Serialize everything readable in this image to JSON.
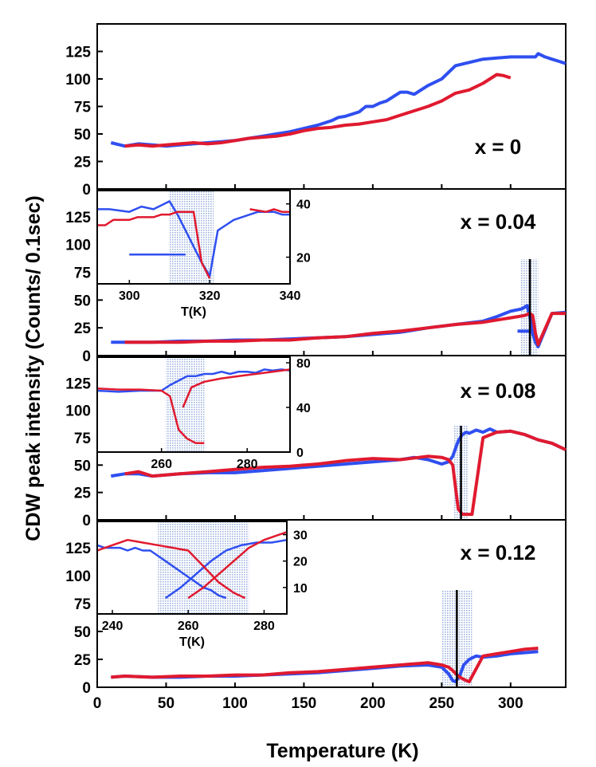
{
  "figure": {
    "xlabel": "Temperature (K)",
    "ylabel": "CDW peak intensity (Counts/ 0.1sec)",
    "xticks": [
      "0",
      "50",
      "100",
      "150",
      "200",
      "250",
      "300"
    ],
    "yticks": [
      "0",
      "25",
      "50",
      "75",
      "100",
      "125"
    ],
    "colors": {
      "blue": "#2f4ff0",
      "red": "#e01a2f",
      "shade": "#9fb4e0"
    }
  },
  "chart_data": [
    {
      "type": "line",
      "title": "x = 0",
      "xlim": [
        0,
        340
      ],
      "ylim": [
        0,
        150
      ],
      "series": [
        {
          "name": "blue",
          "x": [
            10,
            20,
            30,
            40,
            50,
            60,
            70,
            80,
            90,
            100,
            110,
            120,
            130,
            140,
            150,
            160,
            170,
            175,
            180,
            190,
            195,
            200,
            205,
            210,
            220,
            225,
            230,
            240,
            250,
            260,
            270,
            280,
            290,
            300,
            310,
            318,
            320,
            325,
            330,
            335,
            340
          ],
          "y": [
            42,
            39,
            41,
            40,
            39,
            40,
            41,
            42,
            43,
            44,
            46,
            48,
            50,
            52,
            55,
            58,
            62,
            65,
            66,
            70,
            75,
            75,
            78,
            80,
            88,
            88,
            86,
            94,
            100,
            112,
            115,
            118,
            119,
            120,
            120,
            120,
            123,
            120,
            118,
            116,
            114
          ]
        },
        {
          "name": "red",
          "x": [
            20,
            30,
            40,
            50,
            60,
            70,
            80,
            90,
            100,
            110,
            120,
            130,
            140,
            150,
            160,
            170,
            180,
            190,
            200,
            210,
            220,
            230,
            240,
            250,
            260,
            270,
            280,
            290,
            295,
            300
          ],
          "y": [
            39,
            40,
            39,
            40,
            41,
            42,
            41,
            42,
            44,
            46,
            47,
            48,
            50,
            53,
            55,
            56,
            58,
            59,
            61,
            63,
            67,
            71,
            75,
            80,
            87,
            90,
            96,
            104,
            103,
            101
          ]
        }
      ]
    },
    {
      "type": "line",
      "title": "x = 0.04",
      "xlim": [
        0,
        340
      ],
      "ylim": [
        0,
        150
      ],
      "series": [
        {
          "name": "blue",
          "x": [
            10,
            20,
            40,
            60,
            80,
            100,
            120,
            140,
            160,
            180,
            200,
            220,
            240,
            260,
            280,
            290,
            300,
            308,
            312,
            314,
            316,
            318,
            320,
            330,
            340
          ],
          "y": [
            12,
            12,
            12,
            13,
            13,
            14,
            14,
            15,
            16,
            17,
            19,
            21,
            25,
            28,
            31,
            35,
            40,
            42,
            45,
            35,
            20,
            12,
            8,
            38,
            39
          ]
        },
        {
          "name": "blue-low",
          "x": [
            305,
            314
          ],
          "y": [
            22,
            22
          ]
        },
        {
          "name": "red",
          "x": [
            20,
            40,
            60,
            80,
            100,
            120,
            140,
            160,
            180,
            200,
            220,
            240,
            260,
            280,
            300,
            310,
            314,
            316,
            318,
            320,
            330,
            340
          ],
          "y": [
            12,
            12,
            12,
            13,
            13,
            14,
            14,
            16,
            17,
            20,
            22,
            25,
            28,
            30,
            34,
            36,
            38,
            36,
            20,
            10,
            38,
            38
          ]
        }
      ],
      "annotations": [
        "vertical line at T = 314 K",
        "shaded band 307–320 K"
      ]
    },
    {
      "type": "line",
      "title": "x = 0.08",
      "xlim": [
        0,
        340
      ],
      "ylim": [
        0,
        150
      ],
      "series": [
        {
          "name": "blue",
          "x": [
            10,
            20,
            30,
            40,
            60,
            80,
            100,
            120,
            140,
            160,
            180,
            200,
            220,
            230,
            240,
            250,
            255,
            258,
            260,
            262,
            265,
            268,
            270,
            275,
            280,
            285,
            290,
            300,
            310,
            320,
            330,
            340
          ],
          "y": [
            40,
            42,
            42,
            40,
            42,
            43,
            43,
            45,
            47,
            49,
            51,
            53,
            55,
            57,
            55,
            51,
            53,
            58,
            65,
            72,
            78,
            80,
            79,
            82,
            80,
            83,
            80,
            81,
            78,
            73,
            70,
            64
          ]
        },
        {
          "name": "red",
          "x": [
            20,
            30,
            40,
            60,
            80,
            100,
            120,
            140,
            160,
            180,
            200,
            220,
            240,
            250,
            255,
            258,
            260,
            262,
            265,
            268,
            272,
            280,
            290,
            300,
            310,
            320,
            330,
            340
          ],
          "y": [
            42,
            44,
            40,
            42,
            44,
            46,
            48,
            49,
            51,
            54,
            56,
            55,
            58,
            57,
            55,
            50,
            30,
            10,
            5,
            5,
            5,
            75,
            80,
            81,
            78,
            73,
            70,
            64
          ]
        }
      ],
      "annotations": [
        "vertical line at T = 264 K",
        "shaded band 259–269 K"
      ]
    },
    {
      "type": "line",
      "title": "x = 0.12",
      "xlim": [
        0,
        340
      ],
      "ylim": [
        0,
        150
      ],
      "series": [
        {
          "name": "blue",
          "x": [
            10,
            20,
            40,
            60,
            80,
            100,
            120,
            140,
            160,
            180,
            200,
            220,
            240,
            250,
            255,
            258,
            260,
            263,
            266,
            270,
            275,
            280,
            290,
            300,
            310,
            320
          ],
          "y": [
            9,
            10,
            9,
            9,
            10,
            10,
            11,
            12,
            13,
            15,
            17,
            19,
            20,
            18,
            12,
            6,
            5,
            10,
            20,
            25,
            28,
            27,
            28,
            30,
            31,
            32
          ]
        },
        {
          "name": "red",
          "x": [
            10,
            20,
            40,
            60,
            80,
            100,
            120,
            140,
            160,
            180,
            200,
            220,
            230,
            240,
            250,
            255,
            258,
            262,
            266,
            270,
            280,
            290,
            300,
            310,
            320
          ],
          "y": [
            9,
            10,
            9,
            10,
            10,
            11,
            11,
            13,
            14,
            16,
            18,
            20,
            21,
            22,
            20,
            18,
            15,
            10,
            7,
            5,
            28,
            30,
            32,
            34,
            35
          ]
        }
      ],
      "annotations": [
        "vertical line at T = 261 K",
        "shaded band 250–272 K"
      ]
    }
  ],
  "insets": [
    {
      "panel": "x = 0.04",
      "xlabel": "T(K)",
      "xticks": [
        "300",
        "320",
        "340"
      ],
      "right_yticks": [
        "20",
        "40"
      ],
      "xlim": [
        292,
        340
      ],
      "ylim": [
        10,
        45
      ],
      "series": [
        {
          "name": "blue",
          "x": [
            292,
            295,
            300,
            303,
            306,
            310,
            312,
            314,
            316,
            318,
            320,
            322,
            324,
            326,
            328,
            330,
            332,
            334,
            336,
            338,
            340
          ],
          "y": [
            38,
            38,
            37,
            39,
            38,
            41,
            36,
            30,
            24,
            18,
            13,
            30,
            32,
            34,
            35,
            36,
            37,
            37,
            37,
            36,
            36
          ]
        },
        {
          "name": "blue-horizontal",
          "x": [
            300,
            314
          ],
          "y": [
            21,
            21
          ]
        },
        {
          "name": "red",
          "x": [
            292,
            294,
            296,
            298,
            300,
            302,
            304,
            306,
            308,
            310,
            312,
            314,
            316,
            318,
            320
          ],
          "y": [
            32,
            32,
            34,
            34,
            34,
            35,
            35,
            35,
            36,
            36,
            37,
            37,
            37,
            18,
            12
          ]
        },
        {
          "name": "red-right",
          "x": [
            330,
            334,
            336,
            338,
            340
          ],
          "y": [
            38,
            37,
            38,
            37,
            37
          ]
        }
      ],
      "shade": [
        310,
        321
      ]
    },
    {
      "panel": "x = 0.08",
      "xlabel": "",
      "xticks": [
        "260",
        "280"
      ],
      "right_yticks": [
        "0",
        "40",
        "80"
      ],
      "xlim": [
        245,
        290
      ],
      "ylim": [
        0,
        85
      ],
      "series": [
        {
          "name": "blue",
          "x": [
            245,
            250,
            255,
            260,
            262,
            264,
            266,
            268,
            270,
            272,
            274,
            276,
            278,
            280,
            282,
            284,
            286,
            288,
            290
          ],
          "y": [
            55,
            54,
            55,
            55,
            60,
            64,
            68,
            68,
            70,
            70,
            72,
            70,
            72,
            72,
            71,
            74,
            73,
            74,
            73
          ]
        },
        {
          "name": "red",
          "x": [
            245,
            250,
            255,
            260,
            262,
            264,
            266,
            268,
            270
          ],
          "y": [
            57,
            56,
            56,
            55,
            50,
            20,
            12,
            8,
            8
          ]
        },
        {
          "name": "red-upper",
          "x": [
            265,
            267,
            270,
            274,
            278,
            282,
            286,
            290
          ],
          "y": [
            40,
            58,
            63,
            66,
            68,
            70,
            72,
            74
          ]
        }
      ],
      "shade": [
        261,
        270
      ]
    },
    {
      "panel": "x = 0.12",
      "xlabel": "T(K)",
      "xticks": [
        "240",
        "260",
        "280"
      ],
      "right_yticks": [
        "10",
        "20",
        "30"
      ],
      "xlim": [
        236,
        286
      ],
      "ylim": [
        0,
        35
      ],
      "series": [
        {
          "name": "blue",
          "x": [
            236,
            238,
            240,
            242,
            244,
            246,
            248,
            250,
            252,
            254,
            256,
            258,
            260,
            262,
            264,
            266,
            268,
            270
          ],
          "y": [
            26,
            25,
            25,
            25,
            24,
            25,
            24,
            24,
            22,
            20,
            18,
            16,
            14,
            12,
            10,
            9,
            7,
            6
          ]
        },
        {
          "name": "blue-rise",
          "x": [
            254,
            258,
            262,
            266,
            270,
            274,
            278,
            282,
            286
          ],
          "y": [
            6,
            10,
            15,
            20,
            24,
            26,
            27,
            27,
            28
          ]
        },
        {
          "name": "red",
          "x": [
            236,
            240,
            244,
            248,
            252,
            256,
            260,
            264,
            268,
            272,
            275
          ],
          "y": [
            24,
            26,
            28,
            27,
            26,
            25,
            24,
            18,
            12,
            8,
            6
          ]
        },
        {
          "name": "red-rise",
          "x": [
            260,
            264,
            268,
            272,
            276,
            280,
            284,
            286
          ],
          "y": [
            6,
            10,
            15,
            20,
            25,
            28,
            30,
            31
          ]
        }
      ],
      "shade": [
        252,
        276
      ]
    }
  ]
}
